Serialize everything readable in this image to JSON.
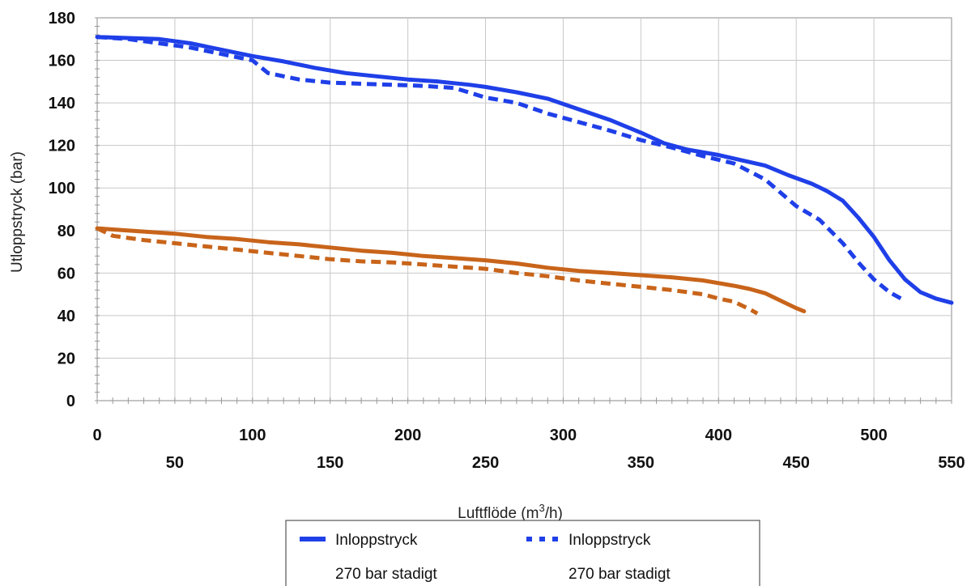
{
  "chart_data": {
    "type": "line",
    "xlabel": "Luftflöde (m",
    "xlabel_sup": "3",
    "xlabel_tail": "/h)",
    "ylabel": "Utloppstryck (bar)",
    "xlim": [
      0,
      550
    ],
    "ylim": [
      0,
      180
    ],
    "grid": true,
    "legend_position": "bottom-center",
    "y_ticks": [
      "0",
      "20",
      "40",
      "60",
      "80",
      "100",
      "120",
      "140",
      "160",
      "180"
    ],
    "x_ticks_upper": [
      "0",
      "100",
      "200",
      "300",
      "400",
      "500"
    ],
    "x_ticks_lower": [
      "50",
      "150",
      "250",
      "350",
      "450",
      "550"
    ],
    "colors": {
      "blue": "#1f3fe8",
      "orange": "#c8641a"
    },
    "series": [
      {
        "color": "#1f3fe8",
        "style": "solid",
        "x": [
          0,
          20,
          40,
          60,
          80,
          100,
          120,
          140,
          160,
          180,
          200,
          220,
          240,
          250,
          270,
          290,
          310,
          330,
          350,
          365,
          380,
          400,
          415,
          430,
          445,
          460,
          470,
          480,
          490,
          500,
          510,
          520,
          530,
          540,
          550
        ],
        "y": [
          171,
          170.5,
          170,
          168,
          165,
          162,
          159.5,
          156.5,
          154,
          152.5,
          151,
          150,
          148.5,
          147.5,
          145,
          142,
          137,
          132,
          126,
          121,
          118,
          115.5,
          113,
          110.5,
          106,
          102,
          98.5,
          94,
          86,
          77,
          66,
          57,
          51,
          48,
          46
        ]
      },
      {
        "color": "#1f3fe8",
        "style": "dashed",
        "x": [
          0,
          20,
          40,
          60,
          80,
          100,
          110,
          130,
          150,
          170,
          190,
          210,
          230,
          250,
          270,
          290,
          310,
          330,
          350,
          370,
          390,
          410,
          430,
          450,
          465,
          480,
          490,
          500,
          510,
          520
        ],
        "y": [
          171,
          170,
          168,
          166,
          163,
          160,
          154,
          151,
          149.5,
          149,
          148.5,
          148,
          147,
          142.5,
          140,
          135,
          131,
          127,
          122.5,
          119,
          115,
          111.5,
          104,
          91.5,
          85,
          74,
          65,
          57,
          51,
          47
        ]
      },
      {
        "color": "#c8641a",
        "style": "solid",
        "x": [
          0,
          10,
          30,
          50,
          70,
          90,
          110,
          130,
          150,
          170,
          190,
          210,
          230,
          250,
          270,
          290,
          310,
          330,
          350,
          370,
          390,
          410,
          420,
          430,
          440,
          450,
          455
        ],
        "y": [
          81,
          80.5,
          79.5,
          78.5,
          77,
          76,
          74.5,
          73.5,
          72,
          70.5,
          69.5,
          68,
          67,
          66,
          64.5,
          62.5,
          61,
          60,
          59,
          58,
          56.5,
          54,
          52.5,
          50.5,
          47,
          43.5,
          42
        ]
      },
      {
        "color": "#c8641a",
        "style": "dashed",
        "x": [
          0,
          10,
          30,
          50,
          70,
          90,
          110,
          130,
          150,
          170,
          190,
          210,
          230,
          250,
          270,
          290,
          310,
          330,
          350,
          370,
          390,
          400,
          410,
          420,
          425
        ],
        "y": [
          81,
          77.5,
          75.5,
          74,
          72.5,
          71,
          69.5,
          68,
          66.5,
          65.5,
          65,
          64,
          63,
          62,
          60,
          58.5,
          56.5,
          55,
          53.5,
          52,
          50,
          48,
          46.5,
          43,
          41
        ]
      }
    ],
    "legend": [
      {
        "line1": "Inloppstryck",
        "line2": "270 bar stadigt",
        "style": "solid",
        "color": "#1f3fe8"
      },
      {
        "line1": "Inloppstryck",
        "line2": "270 bar stadigt",
        "style": "dashed",
        "color": "#1f3fe8"
      }
    ]
  }
}
